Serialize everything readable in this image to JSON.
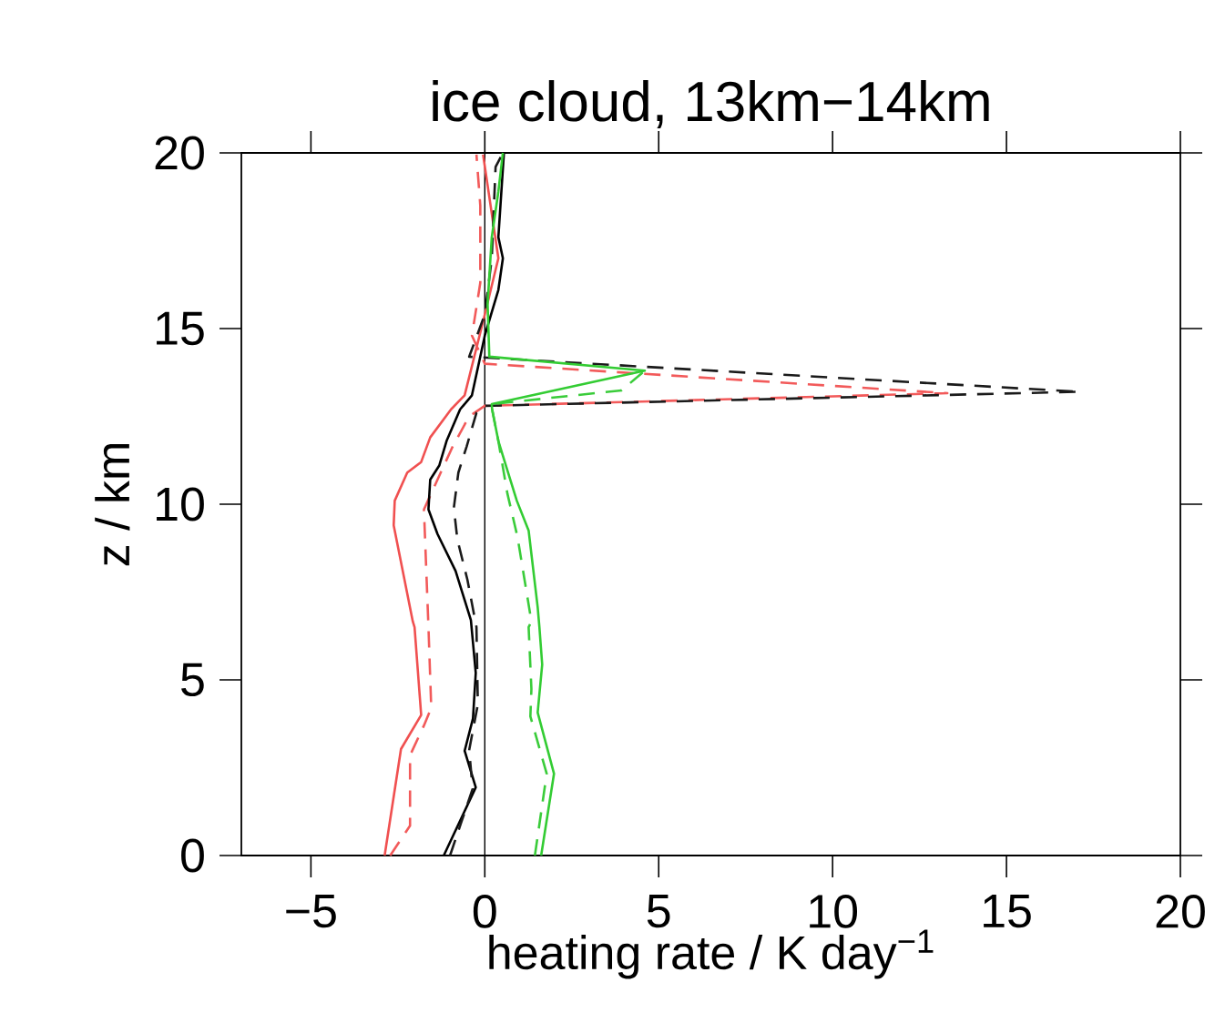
{
  "chart_data": {
    "type": "line",
    "orientation": "horizontal",
    "title": "ice cloud, 13km−14km",
    "xlabel": "heating rate / K day$^{−1}$",
    "ylabel": "z / km",
    "xlim": [
      -7,
      20
    ],
    "ylim": [
      0,
      20
    ],
    "xticks": [
      {
        "value": -5,
        "label": "−5"
      },
      0,
      5,
      10,
      15,
      20
    ],
    "yticks": [
      0,
      5,
      10,
      15,
      20
    ],
    "ref_lines": [
      {
        "axis": "x",
        "value": 0,
        "color": "#000000"
      }
    ],
    "series": [
      {
        "color": "#f05050",
        "line_style": "solid",
        "values": [
          -2.88,
          -2.41,
          -1.83,
          -2.02,
          -2.07,
          -2.33,
          -2.62,
          -2.59,
          -2.23,
          -1.83,
          -1.57,
          -0.97,
          -0.58,
          0,
          0.39,
          -0.05
        ],
        "x": [
          0,
          3.03,
          4.0,
          6.5,
          6.66,
          7.95,
          9.4,
          10.1,
          10.9,
          11.2,
          11.9,
          12.7,
          13.1,
          15.4,
          17.0,
          19.95
        ]
      },
      {
        "color": "#f25a5a",
        "line_style": "dashed",
        "values": [
          -2.72,
          -2.15,
          -2.15,
          -1.75,
          -1.54,
          -1.62,
          -1.75,
          -1.36,
          -0.92,
          -0.45,
          0,
          13.3,
          0,
          -0.37,
          -0.13,
          -0.13,
          -0.24
        ],
        "x": [
          0,
          0.85,
          2.85,
          3.7,
          4.2,
          6.5,
          9.85,
          10.7,
          11.65,
          12.5,
          12.8,
          13.16,
          14.0,
          14.8,
          16.3,
          18.5,
          19.95
        ]
      },
      {
        "color": "#000000",
        "line_style": "solid",
        "values": [
          -1.18,
          -0.26,
          -0.58,
          -0.34,
          -0.26,
          -0.4,
          -0.84,
          -1.36,
          -1.62,
          -1.57,
          -1.31,
          -1.1,
          -0.71,
          -0.37,
          0,
          0.39,
          0.52,
          0.39,
          0.55
        ],
        "x": [
          0,
          1.94,
          2.98,
          3.9,
          5.2,
          6.7,
          8.1,
          9.15,
          9.85,
          10.7,
          11.1,
          11.8,
          12.7,
          13.1,
          14.8,
          16.1,
          17.0,
          17.6,
          20
        ]
      },
      {
        "color": "#1a1a1a",
        "line_style": "dashed",
        "values": [
          -1.0,
          -0.35,
          -0.45,
          -0.2,
          -0.24,
          -0.5,
          -0.79,
          -0.89,
          -0.76,
          -0.52,
          -0.24,
          0,
          17.1,
          -0.45,
          0,
          0.2,
          0.31,
          0.52
        ],
        "x": [
          0,
          1.9,
          3.0,
          4.3,
          6.5,
          7.85,
          9.0,
          9.9,
          10.9,
          11.65,
          12.6,
          12.8,
          13.2,
          14.2,
          15.4,
          17.0,
          19.6,
          20
        ]
      },
      {
        "color": "#33cc33",
        "line_style": "solid",
        "values": [
          1.62,
          1.99,
          1.52,
          1.65,
          1.57,
          1.52,
          1.26,
          0.92,
          0.65,
          0.39,
          0.21,
          0.2,
          4.6,
          0.13,
          0.08,
          0.2,
          0.39,
          0.52
        ],
        "x": [
          0,
          2.33,
          4.07,
          5.44,
          6.5,
          7.07,
          9.25,
          10.1,
          10.96,
          11.8,
          12.7,
          12.85,
          13.8,
          14.2,
          15.7,
          17.6,
          18.9,
          20
        ]
      },
      {
        "color": "#3acc3a",
        "line_style": "dashed",
        "values": [
          1.44,
          1.78,
          1.31,
          1.34,
          1.26,
          1.34,
          0.94,
          0.65,
          0.39,
          0.21,
          0.2,
          3.93,
          4.6
        ],
        "x": [
          0,
          2.33,
          3.96,
          4.74,
          6.5,
          6.66,
          9.07,
          10.3,
          11.8,
          12.7,
          12.85,
          13.24,
          13.8
        ]
      }
    ]
  }
}
